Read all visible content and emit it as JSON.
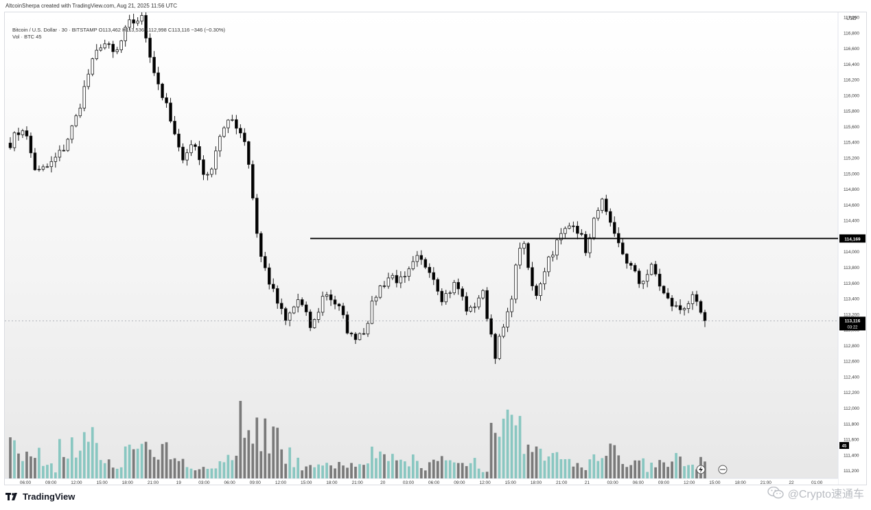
{
  "header": {
    "attribution": "AltcoinSherpa created with TradingView.com, Aug 21, 2025 11:56 UTC",
    "symbol_line": "Bitcoin / U.S. Dollar · 30 · BITSTAMP  O113,462  H113,536  L112,998  C113,116  −346 (−0.30%)",
    "volume_line": "Vol · BTC  45"
  },
  "brand": {
    "name": "TradingView",
    "logo_icon": "tradingview-logo-icon"
  },
  "watermark": {
    "text": "@Crypto速通车",
    "icon": "wechat-icon"
  },
  "colors": {
    "up_candle_body": "#ffffff",
    "down_candle_body": "#000000",
    "volume_up": "#7ec3bd",
    "volume_down": "#6e6e6e",
    "level_line": "#000000"
  },
  "chart_data": {
    "type": "candlestick",
    "currency_label": "USD",
    "ylim": [
      111100,
      117000
    ],
    "y_ticks": [
      "117,000",
      "116,800",
      "116,600",
      "116,400",
      "116,200",
      "116,000",
      "115,800",
      "115,600",
      "115,400",
      "115,200",
      "115,000",
      "114,800",
      "114,600",
      "114,400",
      "114,200",
      "114,000",
      "113,800",
      "113,600",
      "113,400",
      "113,200",
      "113,000",
      "112,800",
      "112,600",
      "112,400",
      "112,200",
      "112,000",
      "111,800",
      "111,600",
      "111,400",
      "111,200"
    ],
    "x_ticks": [
      "06:00",
      "09:00",
      "12:00",
      "15:00",
      "18:00",
      "21:00",
      "19",
      "03:00",
      "06:00",
      "09:00",
      "12:00",
      "15:00",
      "18:00",
      "21:00",
      "20",
      "03:00",
      "06:00",
      "09:00",
      "12:00",
      "15:00",
      "18:00",
      "21:00",
      "21",
      "03:00",
      "06:00",
      "09:00",
      "12:00",
      "15:00",
      "18:00",
      "21:00",
      "22",
      "01:00"
    ],
    "horizontal_level": {
      "value": 114169,
      "label": "114,169"
    },
    "last_price": {
      "value": 113116,
      "label": "113,116",
      "countdown": "03:22"
    },
    "volume_badge": "45",
    "waypoints": [
      [
        115400,
        100
      ],
      [
        115600,
        70
      ],
      [
        115000,
        70
      ],
      [
        115100,
        30
      ],
      [
        115300,
        90
      ],
      [
        115700,
        80
      ],
      [
        116300,
        110
      ],
      [
        116700,
        70
      ],
      [
        116500,
        50
      ],
      [
        116900,
        70
      ],
      [
        117000,
        90
      ],
      [
        116300,
        60
      ],
      [
        115800,
        70
      ],
      [
        115200,
        40
      ],
      [
        115400,
        30
      ],
      [
        114900,
        50
      ],
      [
        115500,
        40
      ],
      [
        115700,
        60
      ],
      [
        115400,
        180
      ],
      [
        114000,
        130
      ],
      [
        113500,
        110
      ],
      [
        113100,
        60
      ],
      [
        113400,
        40
      ],
      [
        113000,
        50
      ],
      [
        113500,
        30
      ],
      [
        113300,
        40
      ],
      [
        112900,
        50
      ],
      [
        113000,
        30
      ],
      [
        113500,
        60
      ],
      [
        113700,
        50
      ],
      [
        113600,
        40
      ],
      [
        113900,
        50
      ],
      [
        113800,
        40
      ],
      [
        113400,
        50
      ],
      [
        113600,
        40
      ],
      [
        113200,
        50
      ],
      [
        113500,
        30
      ],
      [
        112700,
        160
      ],
      [
        113200,
        150
      ],
      [
        114200,
        120
      ],
      [
        113400,
        70
      ],
      [
        113900,
        60
      ],
      [
        114200,
        50
      ],
      [
        114400,
        40
      ],
      [
        114000,
        40
      ],
      [
        114700,
        60
      ],
      [
        114200,
        70
      ],
      [
        113900,
        50
      ],
      [
        113600,
        40
      ],
      [
        113800,
        30
      ],
      [
        113400,
        40
      ],
      [
        113250,
        50
      ],
      [
        113400,
        40
      ],
      [
        113116,
        45
      ]
    ]
  }
}
